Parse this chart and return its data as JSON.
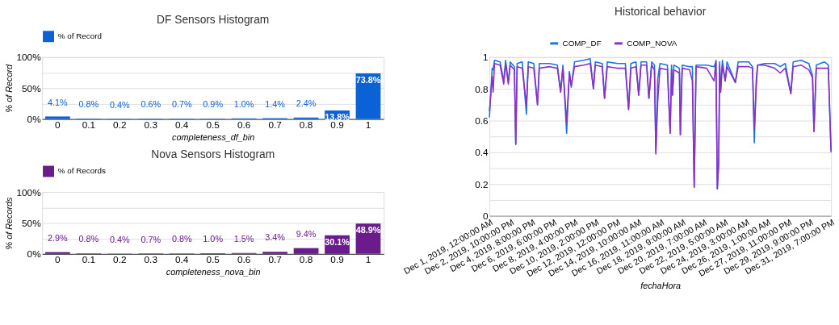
{
  "chart_data": [
    {
      "type": "bar",
      "title": "DF Sensors Histogram",
      "xlabel": "completeness_df_bin",
      "ylabel": "% of Record",
      "categories": [
        "0",
        "0.1",
        "0.2",
        "0.3",
        "0.4",
        "0.5",
        "0.6",
        "0.7",
        "0.8",
        "0.9",
        "1"
      ],
      "series": [
        {
          "name": "% of Record",
          "color": "#0b62d6",
          "values": [
            4.1,
            0.8,
            0.4,
            0.6,
            0.7,
            0.9,
            1.0,
            1.4,
            2.4,
            13.8,
            73.8
          ],
          "value_labels": [
            "4.1%",
            "0.8%",
            "0.4%",
            "0.6%",
            "0.7%",
            "0.9%",
            "1.0%",
            "1.4%",
            "2.4%",
            "13.8%",
            "73.8%"
          ]
        }
      ],
      "ylim": [
        0,
        100
      ],
      "yticks": [
        {
          "value": 0,
          "label": "0%"
        },
        {
          "value": 25,
          "label": null
        },
        {
          "value": 50,
          "label": "50%"
        },
        {
          "value": 75,
          "label": null
        },
        {
          "value": 100,
          "label": "100%"
        }
      ],
      "grid": "y",
      "legend": "top left"
    },
    {
      "type": "bar",
      "title": "Nova Sensors Histogram",
      "xlabel": "completeness_nova_bin",
      "ylabel": "% of Records",
      "categories": [
        "0",
        "0.1",
        "0.2",
        "0.3",
        "0.4",
        "0.5",
        "0.6",
        "0.7",
        "0.8",
        "0.9",
        "1"
      ],
      "series": [
        {
          "name": "% of Records",
          "color": "#6a1b8c",
          "values": [
            2.9,
            0.8,
            0.4,
            0.7,
            0.8,
            1.0,
            1.5,
            3.4,
            9.4,
            30.1,
            48.9
          ],
          "value_labels": [
            "2.9%",
            "0.8%",
            "0.4%",
            "0.7%",
            "0.8%",
            "1.0%",
            "1.5%",
            "3.4%",
            "9.4%",
            "30.1%",
            "48.9%"
          ]
        }
      ],
      "ylim": [
        0,
        100
      ],
      "yticks": [
        {
          "value": 0,
          "label": "0%"
        },
        {
          "value": 25,
          "label": null
        },
        {
          "value": 50,
          "label": "50%"
        },
        {
          "value": 75,
          "label": null
        },
        {
          "value": 100,
          "label": "100%"
        }
      ],
      "grid": "y",
      "legend": "top left"
    },
    {
      "type": "line",
      "title": "Historical behavior",
      "xlabel": "fechaHora",
      "x": [
        "2019-12-01T00:00",
        "2019-12-01T06:00",
        "2019-12-01T08:00",
        "2019-12-01T11:00",
        "2019-12-01T23:00",
        "2019-12-02T07:00",
        "2019-12-02T11:00",
        "2019-12-02T17:00",
        "2019-12-02T21:00",
        "2019-12-03T06:00",
        "2019-12-03T09:00",
        "2019-12-03T12:00",
        "2019-12-03T23:00",
        "2019-12-04T08:00",
        "2019-12-04T12:00",
        "2019-12-05T00:00",
        "2019-12-05T08:00",
        "2019-12-05T12:00",
        "2019-12-06T10:00",
        "2019-12-07T03:00",
        "2019-12-07T10:00",
        "2019-12-07T15:00",
        "2019-12-07T23:00",
        "2019-12-08T05:00",
        "2019-12-08T09:00",
        "2019-12-08T16:00",
        "2019-12-09T12:00",
        "2019-12-10T02:00",
        "2019-12-10T09:00",
        "2019-12-10T13:00",
        "2019-12-11T04:00",
        "2019-12-11T09:00",
        "2019-12-11T15:00",
        "2019-12-12T13:00",
        "2019-12-13T06:00",
        "2019-12-13T13:00",
        "2019-12-13T18:00",
        "2019-12-14T05:00",
        "2019-12-14T11:00",
        "2019-12-14T16:00",
        "2019-12-15T04:00",
        "2019-12-15T09:00",
        "2019-12-15T15:00",
        "2019-12-15T21:00",
        "2019-12-16T00:00",
        "2019-12-16T04:00",
        "2019-12-16T09:00",
        "2019-12-17T01:00",
        "2019-12-17T07:00",
        "2019-12-17T10:00",
        "2019-12-17T12:00",
        "2019-12-17T15:00",
        "2019-12-18T03:00",
        "2019-12-18T05:00",
        "2019-12-18T09:00",
        "2019-12-19T01:00",
        "2019-12-19T07:00",
        "2019-12-19T11:00",
        "2019-12-19T15:00",
        "2019-12-20T14:00",
        "2019-12-21T06:00",
        "2019-12-21T10:00",
        "2019-12-21T13:00",
        "2019-12-21T16:00",
        "2019-12-21T18:00",
        "2019-12-21T20:00",
        "2019-12-22T00:00",
        "2019-12-22T06:00",
        "2019-12-22T10:00",
        "2019-12-23T04:00",
        "2019-12-23T10:00",
        "2019-12-24T09:00",
        "2019-12-24T17:00",
        "2019-12-24T21:00",
        "2019-12-25T01:00",
        "2019-12-25T04:00",
        "2019-12-25T19:00",
        "2019-12-26T17:00",
        "2019-12-27T05:00",
        "2019-12-27T16:00",
        "2019-12-28T04:00",
        "2019-12-28T09:00",
        "2019-12-29T02:00",
        "2019-12-29T19:00",
        "2019-12-30T03:00",
        "2019-12-30T06:00",
        "2019-12-30T11:00",
        "2019-12-31T05:00",
        "2019-12-31T13:00",
        "2019-12-31T19:00"
      ],
      "series": [
        {
          "name": "COMP_DF",
          "color": "#1a73e8",
          "values": [
            0.62,
            0.93,
            0.92,
            0.98,
            0.97,
            0.85,
            0.98,
            0.84,
            0.97,
            0.94,
            0.45,
            0.96,
            0.97,
            0.64,
            0.97,
            0.96,
            0.7,
            0.96,
            0.96,
            0.95,
            0.78,
            0.95,
            0.52,
            0.91,
            0.81,
            0.97,
            0.98,
            0.99,
            0.8,
            0.97,
            0.96,
            0.74,
            0.97,
            0.96,
            0.96,
            0.67,
            0.96,
            0.97,
            0.76,
            0.97,
            0.97,
            0.74,
            0.97,
            0.95,
            0.4,
            0.86,
            0.96,
            0.95,
            0.52,
            0.95,
            0.76,
            0.95,
            0.93,
            0.51,
            0.95,
            0.94,
            0.94,
            0.18,
            0.95,
            0.95,
            0.94,
            0.97,
            0.17,
            0.33,
            0.97,
            0.78,
            0.98,
            0.85,
            0.97,
            0.84,
            0.97,
            0.97,
            0.94,
            0.46,
            0.85,
            0.95,
            0.96,
            0.96,
            0.94,
            0.96,
            0.77,
            0.97,
            0.98,
            0.96,
            0.88,
            0.53,
            0.95,
            0.97,
            0.95,
            0.4
          ]
        },
        {
          "name": "COMP_NOVA",
          "color": "#8e2fc4",
          "values": [
            0.66,
            0.88,
            0.78,
            0.96,
            0.95,
            0.83,
            0.96,
            0.83,
            0.95,
            0.92,
            0.45,
            0.94,
            0.93,
            0.7,
            0.94,
            0.93,
            0.7,
            0.93,
            0.94,
            0.93,
            0.78,
            0.93,
            0.59,
            0.9,
            0.82,
            0.94,
            0.95,
            0.96,
            0.8,
            0.95,
            0.94,
            0.74,
            0.94,
            0.93,
            0.93,
            0.67,
            0.93,
            0.94,
            0.76,
            0.95,
            0.95,
            0.74,
            0.95,
            0.92,
            0.39,
            0.72,
            0.93,
            0.92,
            0.52,
            0.92,
            0.76,
            0.92,
            0.9,
            0.51,
            0.93,
            0.92,
            0.85,
            0.18,
            0.94,
            0.93,
            0.85,
            0.98,
            0.17,
            0.33,
            0.95,
            0.78,
            0.95,
            0.85,
            0.94,
            0.84,
            0.94,
            0.94,
            0.93,
            0.55,
            0.8,
            0.95,
            0.95,
            0.93,
            0.9,
            0.93,
            0.77,
            0.94,
            0.95,
            0.92,
            0.87,
            0.53,
            0.93,
            0.93,
            0.93,
            0.41
          ]
        }
      ],
      "xlim": [
        "2019-12-01T00:00",
        "2019-12-31T19:00"
      ],
      "xticks": [
        {
          "value": "2019-12-01T00:00",
          "label": "Dec 1, 2019, 12:00:00 AM"
        },
        {
          "value": "2019-12-02T22:00",
          "label": "Dec 2, 2019, 10:00:00 PM"
        },
        {
          "value": "2019-12-04T20:00",
          "label": "Dec 4, 2019, 8:00:00 PM"
        },
        {
          "value": "2019-12-06T18:00",
          "label": "Dec 6, 2019, 6:00:00 PM"
        },
        {
          "value": "2019-12-08T16:00",
          "label": "Dec 8, 2019, 4:00:00 PM"
        },
        {
          "value": "2019-12-10T14:00",
          "label": "Dec 10, 2019, 2:00:00 PM"
        },
        {
          "value": "2019-12-12T12:00",
          "label": "Dec 12, 2019, 12:00:00 PM"
        },
        {
          "value": "2019-12-14T10:00",
          "label": "Dec 14, 2019, 10:00:00 AM"
        },
        {
          "value": "2019-12-16T11:00",
          "label": "Dec 16, 2019, 11:00:00 AM"
        },
        {
          "value": "2019-12-18T09:00",
          "label": "Dec 18, 2019, 9:00:00 AM"
        },
        {
          "value": "2019-12-20T07:00",
          "label": "Dec 20, 2019, 7:00:00 AM"
        },
        {
          "value": "2019-12-22T05:00",
          "label": "Dec 22, 2019, 5:00:00 AM"
        },
        {
          "value": "2019-12-24T03:00",
          "label": "Dec 24, 2019, 3:00:00 AM"
        },
        {
          "value": "2019-12-26T01:00",
          "label": "Dec 26, 2019, 1:00:00 AM"
        },
        {
          "value": "2019-12-27T23:00",
          "label": "Dec 27, 2019, 11:00:00 PM"
        },
        {
          "value": "2019-12-29T21:00",
          "label": "Dec 29, 2019, 9:00:00 PM"
        },
        {
          "value": "2019-12-31T19:00",
          "label": "Dec 31, 2019, 7:00:00 PM"
        }
      ],
      "ylim": [
        0,
        1
      ],
      "yticks": [
        0,
        {
          "value": 0.1,
          "label": null
        },
        0.2,
        {
          "value": 0.3,
          "label": null
        },
        0.4,
        {
          "value": 0.5,
          "label": null
        },
        0.6,
        {
          "value": 0.7,
          "label": null
        },
        0.8,
        {
          "value": 0.9,
          "label": null
        },
        1
      ],
      "grid": "y",
      "legend": "top",
      "marker": "none",
      "line_style": "solid"
    }
  ]
}
